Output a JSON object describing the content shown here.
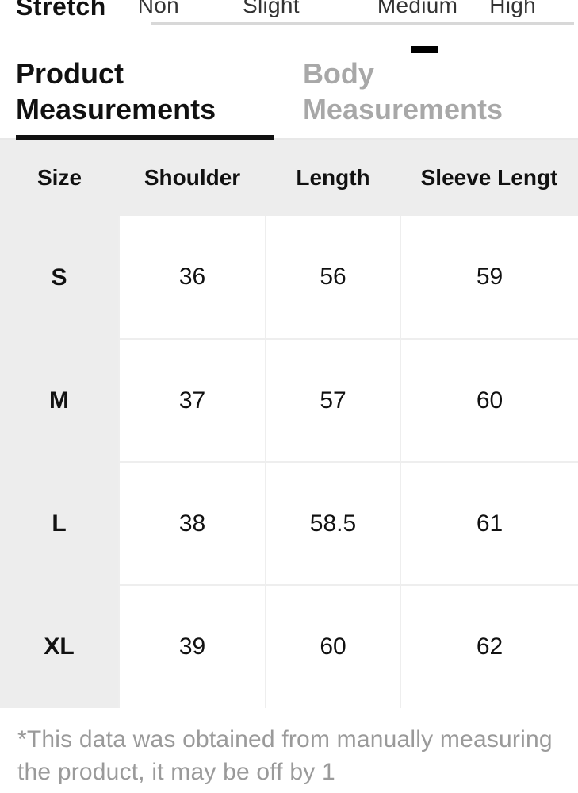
{
  "stretch": {
    "label": "Stretch",
    "options": [
      "Non",
      "Slight",
      "Medium",
      "High"
    ],
    "selected_index": 2,
    "underline_color": "#d8d8d8",
    "marker_color": "#000000"
  },
  "tabs": {
    "items": [
      {
        "label": "Product Measurements",
        "active": true
      },
      {
        "label": "Body Measurements",
        "active": false
      }
    ],
    "active_color": "#111111",
    "inactive_color": "#a8a8a8",
    "underline_color": "#111111"
  },
  "size_table": {
    "type": "table",
    "columns": [
      "Size",
      "Shoulder",
      "Length",
      "Sleeve Lengt"
    ],
    "rows": [
      [
        "S",
        "36",
        "56",
        "59"
      ],
      [
        "M",
        "37",
        "57",
        "60"
      ],
      [
        "L",
        "38",
        "58.5",
        "61"
      ],
      [
        "XL",
        "39",
        "60",
        "62"
      ]
    ],
    "header_bg": "#ededed",
    "size_col_bg": "#ededed",
    "cell_bg": "#ffffff",
    "border_color": "#eeeeee",
    "header_fontsize": 28,
    "cell_fontsize": 30,
    "text_color": "#111111"
  },
  "footnote": {
    "text": "*This data was obtained from manually measuring the product, it may be off by 1",
    "color": "#9a9a9a",
    "fontsize": 30
  }
}
